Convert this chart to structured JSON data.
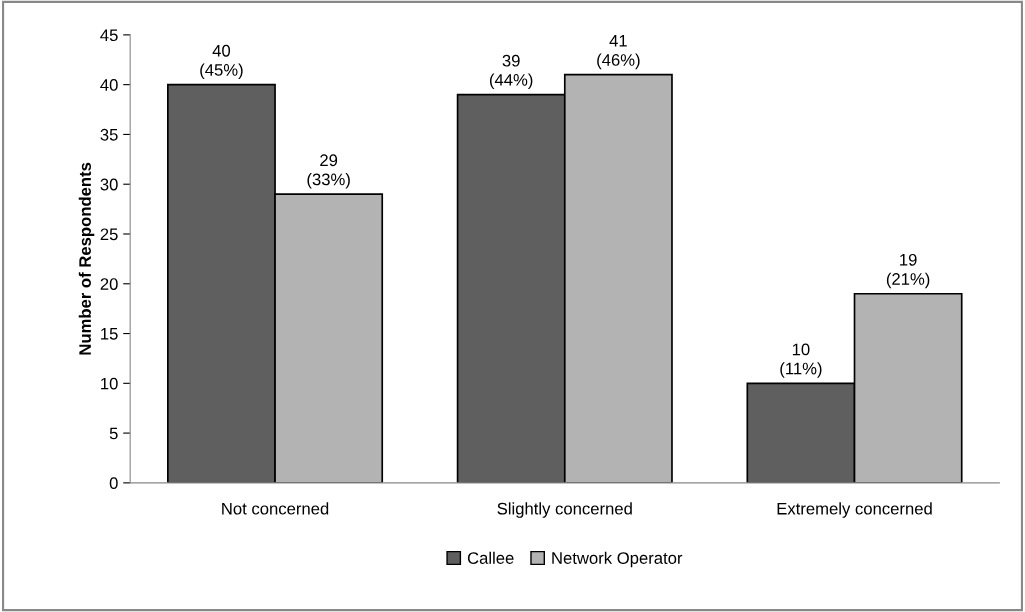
{
  "chart_data": {
    "type": "bar",
    "ylabel": "Number of Respondents",
    "categories": [
      "Not concerned",
      "Slightly concerned",
      "Extremely concerned"
    ],
    "series": [
      {
        "name": "Callee",
        "color": "#5f5f5f",
        "values": [
          40,
          39,
          10
        ],
        "value_labels": [
          "40\n(45%)",
          "39\n(44%)",
          "10\n(11%)"
        ]
      },
      {
        "name": "Network Operator",
        "color": "#b3b3b3",
        "values": [
          29,
          41,
          19
        ],
        "value_labels": [
          "29\n(33%)",
          "41\n(46%)",
          "19\n(21%)"
        ]
      }
    ],
    "ylim": [
      0,
      45
    ],
    "yticks": [
      0,
      5,
      10,
      15,
      20,
      25,
      30,
      35,
      40,
      45
    ],
    "grid": false,
    "legend": "bottom"
  }
}
